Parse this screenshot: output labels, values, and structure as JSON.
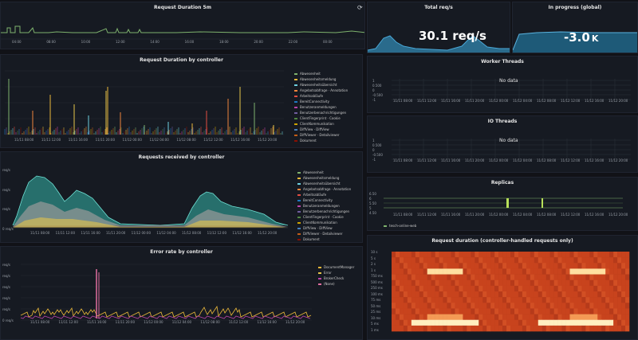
{
  "colors": {
    "bg": "#111217",
    "panel": "#161a22",
    "green": "#7eb26d",
    "teal": "#2f8a8a",
    "yellow": "#e5c54a",
    "pink": "#e06ea0",
    "heat_bright": "#ffe7a0",
    "heat_base": "#c8431d"
  },
  "panels": {
    "request_duration": {
      "title": "Request Duration 5m",
      "ticks": [
        "04:00",
        "08:00",
        "10:00",
        "12:00",
        "14:00",
        "16:00",
        "18:00",
        "20:00",
        "22:00",
        "00:00"
      ],
      "refresh_icon": "refresh-icon"
    },
    "total_req": {
      "title": "Total req/s",
      "value": "30.1 req/s"
    },
    "in_progress": {
      "title": "In progress (global)",
      "value": "-3.0",
      "unit": "K"
    },
    "duration_by_controller": {
      "title": "Request Duration by controller",
      "ticks": [
        "11/11 08:00",
        "11/11 12:00",
        "11/11 16:00",
        "11/11 20:00",
        "11/12 00:00",
        "11/12 04:00",
        "11/12 08:00",
        "11/12 12:00",
        "11/12 16:00",
        "11/12 20:00"
      ]
    },
    "worker_threads": {
      "title": "Worker Threads",
      "nodata": "No data",
      "yticks": [
        "1",
        "0.500",
        "0",
        "-0.500",
        "-1"
      ],
      "ticks": [
        "11/11 08:00",
        "11/11 12:00",
        "11/11 16:00",
        "11/11 20:00",
        "11/12 00:00",
        "11/12 04:00",
        "11/12 08:00",
        "11/12 12:00",
        "11/12 16:00",
        "11/12 20:00"
      ]
    },
    "io_threads": {
      "title": "IO Threads",
      "nodata": "No data",
      "yticks": [
        "1",
        "0.500",
        "0",
        "-0.500",
        "-1"
      ],
      "ticks": [
        "11/11 08:00",
        "11/11 12:00",
        "11/11 16:00",
        "11/11 20:00",
        "11/12 00:00",
        "11/12 04:00",
        "11/12 08:00",
        "11/12 12:00",
        "11/12 16:00",
        "11/12 20:00"
      ]
    },
    "requests_by_controller": {
      "title": "Requests received by controller",
      "yticks": [
        "req/s",
        "req/s",
        "req/s",
        "0 req/s"
      ],
      "ticks": [
        "11/11 08:00",
        "11/11 12:00",
        "11/11 16:00",
        "11/11 20:00",
        "11/12 00:00",
        "11/12 04:00",
        "11/12 08:00",
        "11/12 12:00",
        "11/12 16:00",
        "11/12 20:00"
      ]
    },
    "replicas": {
      "title": "Replicas",
      "yticks": [
        "6.50",
        "6",
        "5.50",
        "5",
        "4.50"
      ],
      "ticks": [
        "11/11 08:00",
        "11/11 12:00",
        "11/11 16:00",
        "11/11 20:00",
        "11/12 00:00",
        "11/12 04:00",
        "11/12 08:00",
        "11/12 12:00",
        "11/12 16:00",
        "11/12 20:00"
      ],
      "legend": "tesch-online-web"
    },
    "error_rate": {
      "title": "Error rate by controller",
      "yticks": [
        "req/s",
        "req/s",
        "req/s",
        "req/s",
        "req/s",
        "0 req/s"
      ],
      "ticks": [
        "11/11 08:00",
        "11/11 12:00",
        "11/11 16:00",
        "11/11 20:00",
        "11/12 00:00",
        "11/12 04:00",
        "11/12 08:00",
        "11/12 12:00",
        "11/12 16:00",
        "11/12 20:00"
      ],
      "legend": [
        "DocumentManager",
        "Error",
        "BrokerCheck",
        "(None)"
      ]
    },
    "heatmap": {
      "title": "Request duration (controller-handled requests only)",
      "yticks": [
        "10 s",
        "5 s",
        "2 s",
        "1 s",
        "750 ms",
        "500 ms",
        "250 ms",
        "100 ms",
        "75 ms",
        "50 ms",
        "25 ms",
        "10 ms",
        "5 ms",
        "1 ms"
      ]
    }
  },
  "controllers_legend": [
    "Abwesenheit",
    "Abwesenheitsmeldung",
    "Abwesenheitsübersicht",
    "Angebotsabfrage · Annotation",
    "Arbeitsabläufe",
    "BereitConnectivity",
    "Benutzeranmeldungen",
    "Benutzerbenachrichtigungen",
    "ClientFingerprint · Cookie",
    "ClientKommunikation",
    "DiffView · DiffView",
    "DiffViewer · Detailviewer",
    "Dokument"
  ]
}
